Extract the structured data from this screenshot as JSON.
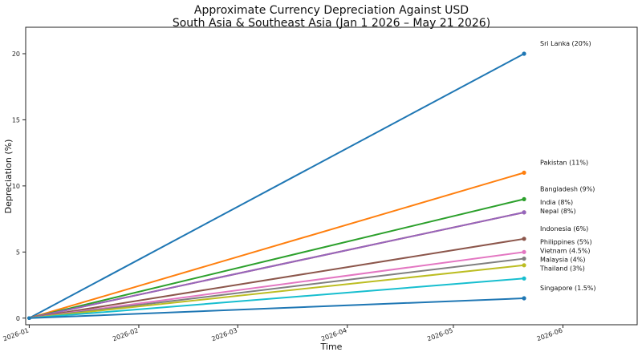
{
  "chart_data": {
    "type": "line",
    "title": "Approximate Currency Depreciation Against USD",
    "subtitle": "South Asia & Southeast Asia (Jan 1 2026 – May 21 2026)",
    "xlabel": "Time",
    "ylabel": "Depreciation (%)",
    "x_start": "2026-01-01",
    "x_end": "2026-05-21",
    "xlim": [
      "2025-12-31",
      "2026-06-22"
    ],
    "ylim": [
      -0.5,
      22
    ],
    "x_ticks": [
      "2026-01",
      "2026-02",
      "2026-03",
      "2026-04",
      "2026-05",
      "2026-06"
    ],
    "y_ticks": [
      0,
      5,
      10,
      15,
      20
    ],
    "grid": false,
    "legend": "none",
    "series": [
      {
        "name": "Sri Lanka",
        "label": "Sri Lanka (20%)",
        "values": [
          0,
          20
        ],
        "color": "#1f77b4"
      },
      {
        "name": "Pakistan",
        "label": "Pakistan (11%)",
        "values": [
          0,
          11
        ],
        "color": "#ff7f0e"
      },
      {
        "name": "Bangladesh",
        "label": "Bangladesh (9%)",
        "values": [
          0,
          9
        ],
        "color": "#2ca02c"
      },
      {
        "name": "India",
        "label": "India (8%)",
        "values": [
          0,
          8
        ],
        "color": "#d62728"
      },
      {
        "name": "Nepal",
        "label": "Nepal (8%)",
        "values": [
          0,
          8
        ],
        "color": "#9467bd"
      },
      {
        "name": "Indonesia",
        "label": "Indonesia (6%)",
        "values": [
          0,
          6
        ],
        "color": "#8c564b"
      },
      {
        "name": "Philippines",
        "label": "Philippines (5%)",
        "values": [
          0,
          5
        ],
        "color": "#e377c2"
      },
      {
        "name": "Vietnam",
        "label": "Vietnam (4.5%)",
        "values": [
          0,
          4.5
        ],
        "color": "#7f7f7f"
      },
      {
        "name": "Malaysia",
        "label": "Malaysia (4%)",
        "values": [
          0,
          4
        ],
        "color": "#bcbd22"
      },
      {
        "name": "Thailand",
        "label": "Thailand (3%)",
        "values": [
          0,
          3
        ],
        "color": "#17becf"
      },
      {
        "name": "Singapore",
        "label": "Singapore (1.5%)",
        "values": [
          0,
          1.5
        ],
        "color": "#1f77b4"
      }
    ]
  }
}
